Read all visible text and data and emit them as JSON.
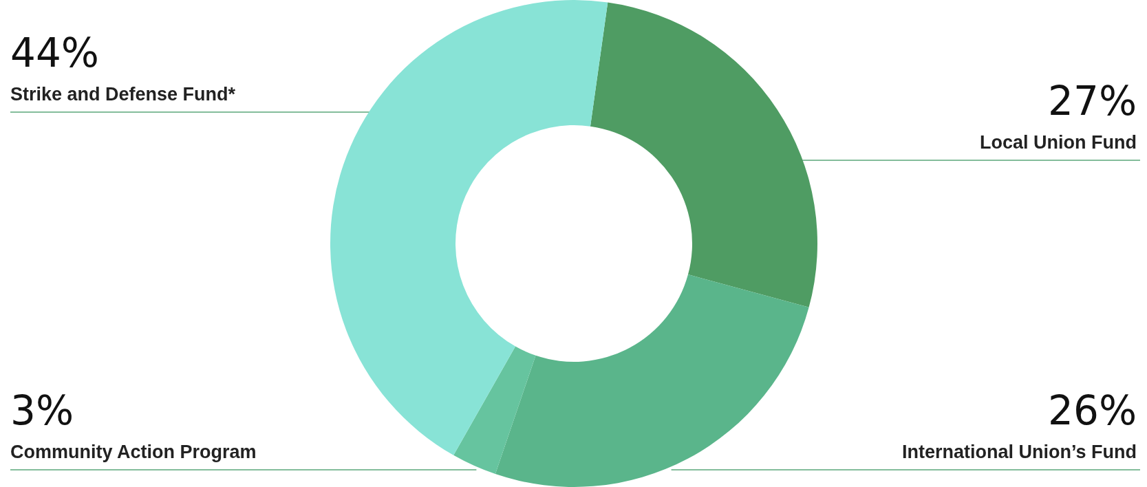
{
  "chart_data": {
    "type": "donut",
    "categories": [
      "Local Union Fund",
      "International Union’s Fund",
      "Community Action Program",
      "Strike and Defense Fund*"
    ],
    "values": [
      27,
      26,
      3,
      44
    ],
    "colors": [
      "#4f9c63",
      "#5ab58b",
      "#66c49f",
      "#88e3d6"
    ],
    "value_labels": [
      "27%",
      "26%",
      "3%",
      "44%"
    ]
  }
}
